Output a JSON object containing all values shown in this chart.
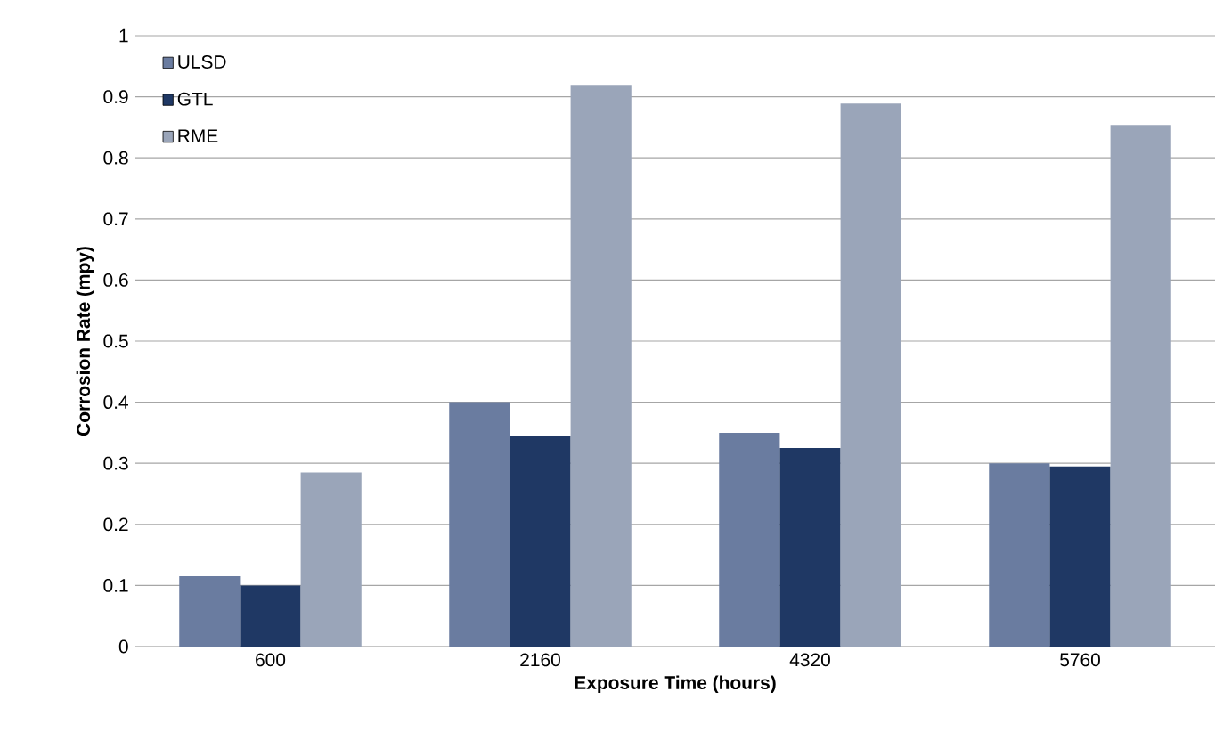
{
  "chart_data": {
    "type": "bar",
    "xlabel": "Exposure Time (hours)",
    "ylabel": "Corrosion Rate (mpy)",
    "categories": [
      "600",
      "2160",
      "4320",
      "5760"
    ],
    "series": [
      {
        "name": "ULSD",
        "color": "#6a7ca0",
        "values": [
          0.115,
          0.4,
          0.35,
          0.3
        ]
      },
      {
        "name": "GTL",
        "color": "#1f3864",
        "values": [
          0.1,
          0.345,
          0.325,
          0.295
        ]
      },
      {
        "name": "RME",
        "color": "#9aa5b9",
        "values": [
          0.285,
          0.918,
          0.889,
          0.854
        ]
      }
    ],
    "ylim": [
      0,
      1
    ],
    "yticks": [
      0,
      0.1,
      0.2,
      0.3,
      0.4,
      0.5,
      0.6,
      0.7,
      0.8,
      0.9,
      1
    ],
    "grid": "y",
    "legend": "top left"
  }
}
